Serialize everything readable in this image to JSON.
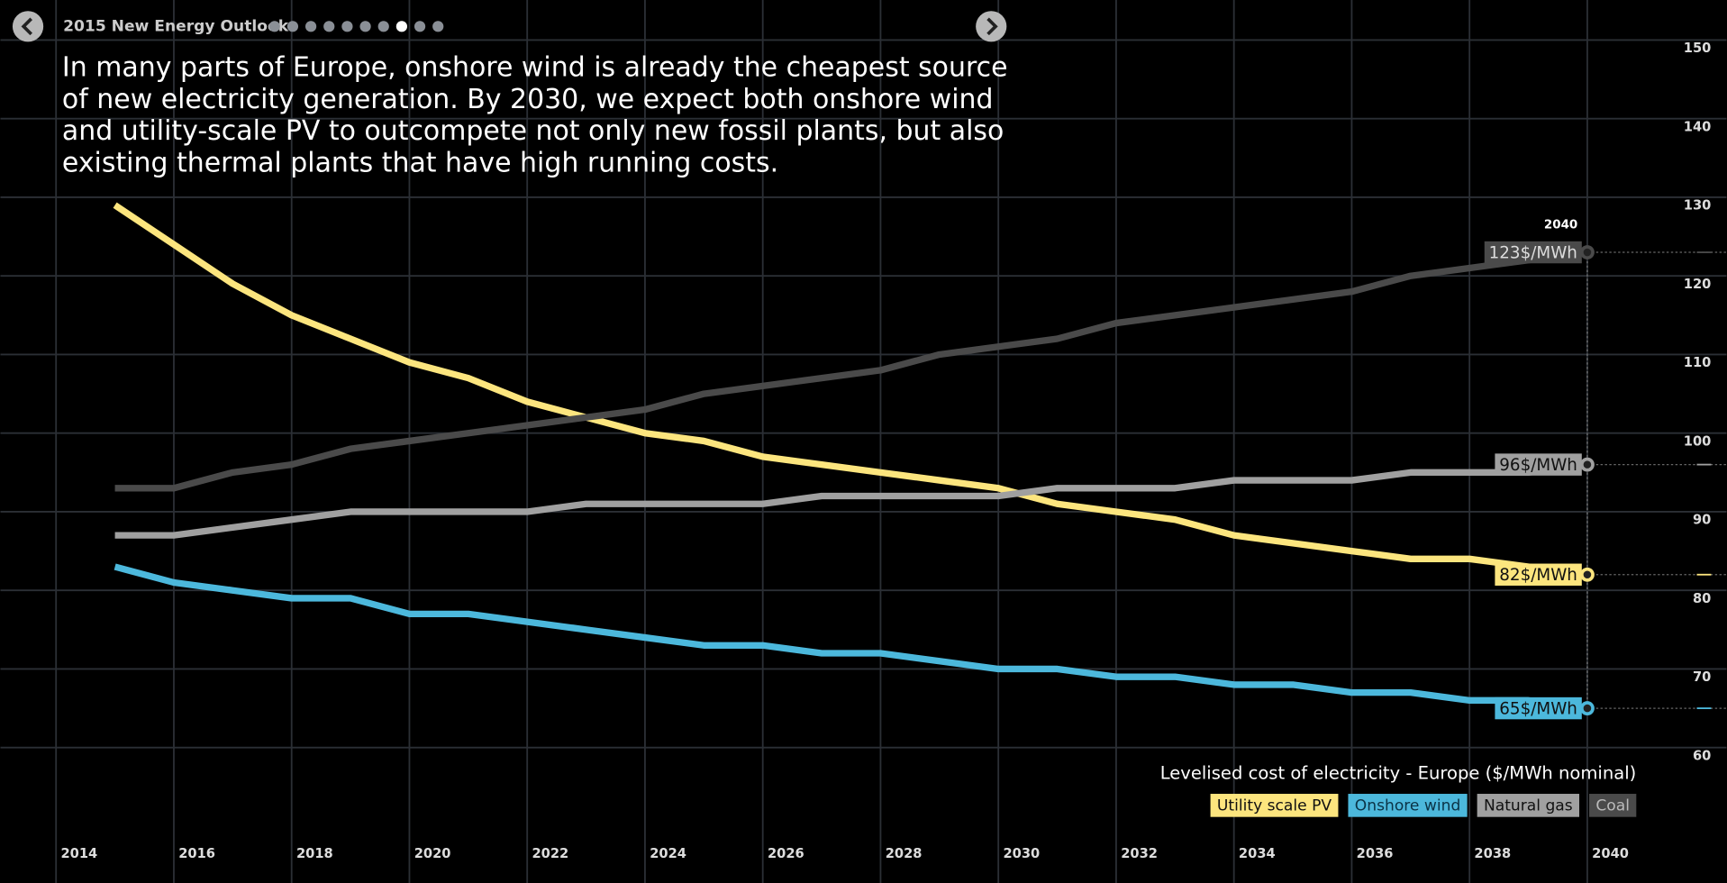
{
  "header": {
    "title": "2015 New Energy Outlook",
    "page_count": 10,
    "current_page": 8,
    "headline": "In many parts of Europe, onshore wind is already the cheapest source of new electricity generation. By 2030, we expect both onshore wind and utility-scale PV to outcompete not only new fossil plants, but also existing thermal plants that have high running costs."
  },
  "chart_data": {
    "type": "line",
    "title": "Levelised cost of electricity - Europe ($/MWh nominal)",
    "x": [
      2015,
      2016,
      2017,
      2018,
      2019,
      2020,
      2021,
      2022,
      2023,
      2024,
      2025,
      2026,
      2027,
      2028,
      2029,
      2030,
      2031,
      2032,
      2033,
      2034,
      2035,
      2036,
      2037,
      2038,
      2039,
      2040
    ],
    "xlim": [
      2014,
      2040
    ],
    "xticks": [
      2014,
      2016,
      2018,
      2020,
      2022,
      2024,
      2026,
      2028,
      2030,
      2032,
      2034,
      2036,
      2038,
      2040
    ],
    "ylim": [
      60,
      150
    ],
    "yticks": [
      60,
      70,
      80,
      90,
      100,
      110,
      120,
      130,
      140,
      150
    ],
    "grid": true,
    "highlight_x": 2040,
    "series": [
      {
        "name": "Utility scale PV",
        "color": "#fce57e",
        "values": [
          129,
          124,
          119,
          115,
          112,
          109,
          107,
          104,
          102,
          100,
          99,
          97,
          96,
          95,
          94,
          93,
          91,
          90,
          89,
          87,
          86,
          85,
          84,
          84,
          83,
          82
        ],
        "value_labels": [
          null,
          null,
          null,
          null,
          null,
          null,
          null,
          null,
          null,
          null,
          null,
          null,
          null,
          null,
          null,
          null,
          null,
          null,
          null,
          null,
          null,
          null,
          null,
          null,
          null,
          "82$/MWh"
        ]
      },
      {
        "name": "Onshore wind",
        "color": "#4cb8dc",
        "values": [
          83,
          81,
          80,
          79,
          79,
          77,
          77,
          76,
          75,
          74,
          73,
          73,
          72,
          72,
          71,
          70,
          70,
          69,
          69,
          68,
          68,
          67,
          67,
          66,
          66,
          65
        ],
        "value_labels": [
          null,
          null,
          null,
          null,
          null,
          null,
          null,
          null,
          null,
          null,
          null,
          null,
          null,
          null,
          null,
          null,
          null,
          null,
          null,
          null,
          null,
          null,
          null,
          null,
          null,
          "65$/MWh"
        ]
      },
      {
        "name": "Natural gas",
        "color": "#a0a0a0",
        "values": [
          87,
          87,
          88,
          89,
          90,
          90,
          90,
          90,
          91,
          91,
          91,
          91,
          92,
          92,
          92,
          92,
          93,
          93,
          93,
          94,
          94,
          94,
          95,
          95,
          95,
          96
        ],
        "value_labels": [
          null,
          null,
          null,
          null,
          null,
          null,
          null,
          null,
          null,
          null,
          null,
          null,
          null,
          null,
          null,
          null,
          null,
          null,
          null,
          null,
          null,
          null,
          null,
          null,
          null,
          "96$/MWh"
        ]
      },
      {
        "name": "Coal",
        "color": "#4a4a4a",
        "values": [
          93,
          93,
          95,
          96,
          98,
          99,
          100,
          101,
          102,
          103,
          105,
          106,
          107,
          108,
          110,
          111,
          112,
          114,
          115,
          116,
          117,
          118,
          120,
          121,
          122,
          123
        ],
        "value_labels": [
          null,
          null,
          null,
          null,
          null,
          null,
          null,
          null,
          null,
          null,
          null,
          null,
          null,
          null,
          null,
          null,
          null,
          null,
          null,
          null,
          null,
          null,
          null,
          null,
          null,
          "123$/MWh"
        ]
      }
    ]
  }
}
